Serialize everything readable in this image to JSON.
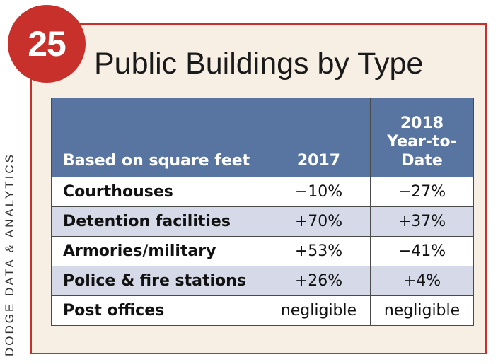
{
  "badge": {
    "number": "25"
  },
  "title": "Public Buildings by Type",
  "side_label": "DODGE DATA & ANALYTICS",
  "chart_data": {
    "type": "table",
    "title": "Public Buildings by Type",
    "columns": [
      "Based on square feet",
      "2017",
      "2018 Year-to-Date"
    ],
    "rows": [
      {
        "type": "Courthouses",
        "y2017": "−10%",
        "y2018_ytd": "−27%"
      },
      {
        "type": "Detention facilities",
        "y2017": "+70%",
        "y2018_ytd": "+37%"
      },
      {
        "type": "Armories/military",
        "y2017": "+53%",
        "y2018_ytd": "−41%"
      },
      {
        "type": "Police & fire stations",
        "y2017": "+26%",
        "y2018_ytd": "+4%"
      },
      {
        "type": "Post offices",
        "y2017": "negligible",
        "y2018_ytd": "negligible"
      }
    ]
  },
  "colors": {
    "accent": "#c8302c",
    "panel_bg": "#f8efe4",
    "header_bg": "#5874a0",
    "stripe": "#d6dae8"
  }
}
